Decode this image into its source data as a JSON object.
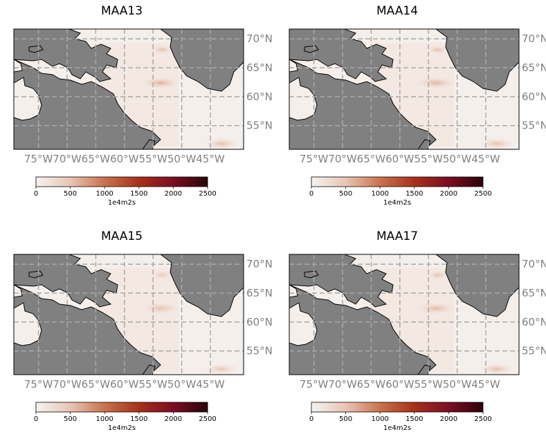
{
  "chart_data": [
    {
      "type": "heatmap",
      "title": "MAA13",
      "xticks": [
        "75°W",
        "70°W",
        "65°W",
        "60°W",
        "55°W",
        "50°W",
        "45°W"
      ],
      "yticks": [
        "70°N",
        "65°N",
        "60°N",
        "55°N"
      ],
      "colorbar": {
        "ticks": [
          0,
          500,
          1000,
          1500,
          2000,
          2500
        ],
        "label": "1e4m2s",
        "range": [
          0,
          2500
        ],
        "cmap": [
          "#f5f3f1",
          "#e8c6b4",
          "#c9724e",
          "#a8301a",
          "#7c0d22",
          "#2a0408"
        ]
      },
      "hotspots_value_approx": [
        450,
        300,
        250
      ]
    },
    {
      "type": "heatmap",
      "title": "MAA14",
      "xticks": [
        "75°W",
        "70°W",
        "65°W",
        "60°W",
        "55°W",
        "50°W",
        "45°W"
      ],
      "yticks": [
        "70°N",
        "65°N",
        "60°N",
        "55°N"
      ],
      "colorbar": {
        "ticks": [
          0,
          500,
          1000,
          1500,
          2000,
          2500
        ],
        "label": "1e4m2s",
        "range": [
          0,
          2500
        ],
        "cmap": [
          "#f5f3f1",
          "#e8c6b4",
          "#c9724e",
          "#a8301a",
          "#7c0d22",
          "#2a0408"
        ]
      },
      "hotspots_value_approx": [
        400,
        250,
        250
      ]
    },
    {
      "type": "heatmap",
      "title": "MAA15",
      "xticks": [
        "75°W",
        "70°W",
        "65°W",
        "60°W",
        "55°W",
        "50°W",
        "45°W"
      ],
      "yticks": [
        "70°N",
        "65°N",
        "60°N",
        "55°N"
      ],
      "colorbar": {
        "ticks": [
          0,
          500,
          1000,
          1500,
          2000,
          2500
        ],
        "label": "1e4m2s",
        "range": [
          0,
          2500
        ],
        "cmap": [
          "#f5f3f1",
          "#e8c6b4",
          "#c9724e",
          "#a8301a",
          "#7c0d22",
          "#2a0408"
        ]
      },
      "hotspots_value_approx": [
        250,
        200,
        150
      ]
    },
    {
      "type": "heatmap",
      "title": "MAA17",
      "xticks": [
        "75°W",
        "70°W",
        "65°W",
        "60°W",
        "55°W",
        "50°W",
        "45°W"
      ],
      "yticks": [
        "70°N",
        "65°N",
        "60°N",
        "55°N"
      ],
      "colorbar": {
        "ticks": [
          0,
          500,
          1000,
          1500,
          2000,
          2500
        ],
        "label": "1e4m2s",
        "range": [
          0,
          2500
        ],
        "cmap": [
          "#f5f3f1",
          "#e8c6b4",
          "#c9724e",
          "#a8301a",
          "#7c0d22",
          "#2a0408"
        ]
      },
      "hotspots_value_approx": [
        350,
        300,
        250
      ]
    }
  ],
  "colors": {
    "land": "#808080",
    "coast": "#000000",
    "grid": "#a9a9a9",
    "tick_label": "#808080"
  }
}
